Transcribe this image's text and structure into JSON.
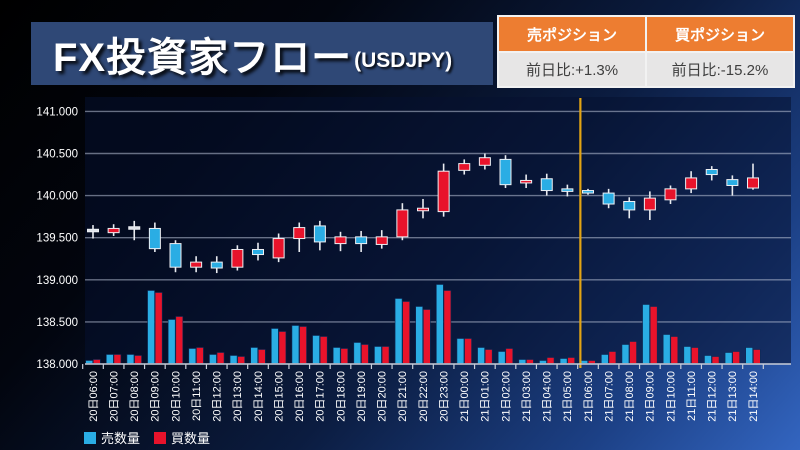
{
  "header": {
    "title": "FX投資家フロー",
    "subtitle": "(USDJPY)"
  },
  "positions": {
    "sell": {
      "label": "売ポジション",
      "value": "前日比:+1.3%"
    },
    "buy": {
      "label": "買ポジション",
      "value": "前日比:-15.2%"
    }
  },
  "legend": {
    "sell": "売数量",
    "buy": "買数量"
  },
  "colors": {
    "up_red": "#e8132b",
    "down_blue": "#2aade4",
    "flat_white": "#dfe3ea",
    "wick": "#e9ebf0",
    "grid": "rgba(185,195,215,0.55)",
    "axis": "#c7cdd9",
    "divider_yellow": "#e2a414",
    "header_orange": "#ed7d31",
    "cell_gray": "#e7e6e6",
    "title_navy": "#2f4876"
  },
  "chart_data": {
    "type": "candlestick+volume",
    "title": "FX投資家フロー (USDJPY)",
    "ylabel": "",
    "ylim": [
      138.0,
      141.0
    ],
    "ytick_labels": [
      "141.000",
      "140.500",
      "140.000",
      "139.500",
      "139.000",
      "138.500",
      "138.000"
    ],
    "yticks": [
      141.0,
      140.5,
      140.0,
      139.5,
      139.0,
      138.5,
      138.0
    ],
    "grid": true,
    "legend_position": "bottom-left",
    "divider_between": [
      "21日05:00",
      "21日06:00"
    ],
    "candles": [
      {
        "t": "20日06:00",
        "o": 139.6,
        "h": 139.65,
        "l": 139.49,
        "c": 139.58,
        "dir": "flat"
      },
      {
        "t": "20日07:00",
        "o": 139.56,
        "h": 139.66,
        "l": 139.52,
        "c": 139.61,
        "dir": "up"
      },
      {
        "t": "20日08:00",
        "o": 139.63,
        "h": 139.7,
        "l": 139.47,
        "c": 139.61,
        "dir": "flat"
      },
      {
        "t": "20日09:00",
        "o": 139.61,
        "h": 139.68,
        "l": 139.33,
        "c": 139.37,
        "dir": "down"
      },
      {
        "t": "20日10:00",
        "o": 139.43,
        "h": 139.47,
        "l": 139.09,
        "c": 139.15,
        "dir": "down"
      },
      {
        "t": "20日11:00",
        "o": 139.15,
        "h": 139.28,
        "l": 139.09,
        "c": 139.21,
        "dir": "up"
      },
      {
        "t": "20日12:00",
        "o": 139.21,
        "h": 139.28,
        "l": 139.08,
        "c": 139.14,
        "dir": "down"
      },
      {
        "t": "20日13:00",
        "o": 139.15,
        "h": 139.41,
        "l": 139.11,
        "c": 139.36,
        "dir": "up"
      },
      {
        "t": "20日14:00",
        "o": 139.36,
        "h": 139.44,
        "l": 139.23,
        "c": 139.3,
        "dir": "down"
      },
      {
        "t": "20日15:00",
        "o": 139.26,
        "h": 139.55,
        "l": 139.21,
        "c": 139.49,
        "dir": "up"
      },
      {
        "t": "20日16:00",
        "o": 139.49,
        "h": 139.68,
        "l": 139.33,
        "c": 139.62,
        "dir": "up"
      },
      {
        "t": "20日17:00",
        "o": 139.64,
        "h": 139.7,
        "l": 139.35,
        "c": 139.45,
        "dir": "down"
      },
      {
        "t": "20日18:00",
        "o": 139.43,
        "h": 139.57,
        "l": 139.34,
        "c": 139.51,
        "dir": "up"
      },
      {
        "t": "20日19:00",
        "o": 139.51,
        "h": 139.58,
        "l": 139.33,
        "c": 139.43,
        "dir": "down"
      },
      {
        "t": "20日20:00",
        "o": 139.42,
        "h": 139.59,
        "l": 139.37,
        "c": 139.51,
        "dir": "up"
      },
      {
        "t": "20日21:00",
        "o": 139.51,
        "h": 139.91,
        "l": 139.47,
        "c": 139.83,
        "dir": "up"
      },
      {
        "t": "20日22:00",
        "o": 139.82,
        "h": 139.96,
        "l": 139.73,
        "c": 139.85,
        "dir": "up"
      },
      {
        "t": "20日23:00",
        "o": 139.81,
        "h": 140.38,
        "l": 139.75,
        "c": 140.29,
        "dir": "up"
      },
      {
        "t": "21日00:00",
        "o": 140.3,
        "h": 140.43,
        "l": 140.25,
        "c": 140.38,
        "dir": "up"
      },
      {
        "t": "21日01:00",
        "o": 140.36,
        "h": 140.5,
        "l": 140.31,
        "c": 140.45,
        "dir": "up"
      },
      {
        "t": "21日02:00",
        "o": 140.43,
        "h": 140.48,
        "l": 140.09,
        "c": 140.13,
        "dir": "down"
      },
      {
        "t": "21日03:00",
        "o": 140.16,
        "h": 140.25,
        "l": 140.09,
        "c": 140.18,
        "dir": "up"
      },
      {
        "t": "21日04:00",
        "o": 140.2,
        "h": 140.26,
        "l": 140.0,
        "c": 140.06,
        "dir": "down"
      },
      {
        "t": "21日05:00",
        "o": 140.08,
        "h": 140.13,
        "l": 139.99,
        "c": 140.05,
        "dir": "down"
      },
      {
        "t": "21日06:00",
        "o": 140.06,
        "h": 140.08,
        "l": 140.01,
        "c": 140.04,
        "dir": "down"
      },
      {
        "t": "21日07:00",
        "o": 140.03,
        "h": 140.08,
        "l": 139.85,
        "c": 139.9,
        "dir": "down"
      },
      {
        "t": "21日08:00",
        "o": 139.93,
        "h": 139.98,
        "l": 139.73,
        "c": 139.83,
        "dir": "down"
      },
      {
        "t": "21日09:00",
        "o": 139.83,
        "h": 140.05,
        "l": 139.71,
        "c": 139.97,
        "dir": "up"
      },
      {
        "t": "21日10:00",
        "o": 139.95,
        "h": 140.12,
        "l": 139.9,
        "c": 140.08,
        "dir": "up"
      },
      {
        "t": "21日11:00",
        "o": 140.08,
        "h": 140.29,
        "l": 140.03,
        "c": 140.21,
        "dir": "up"
      },
      {
        "t": "21日12:00",
        "o": 140.31,
        "h": 140.35,
        "l": 140.18,
        "c": 140.25,
        "dir": "down"
      },
      {
        "t": "21日13:00",
        "o": 140.19,
        "h": 140.24,
        "l": 140.0,
        "c": 140.12,
        "dir": "down"
      },
      {
        "t": "21日14:00",
        "o": 140.09,
        "h": 140.38,
        "l": 140.07,
        "c": 140.21,
        "dir": "up"
      }
    ],
    "volume_series": [
      {
        "name": "売数量",
        "color": "#2aade4",
        "values": [
          3,
          9,
          9,
          73,
          44,
          15,
          9,
          8,
          16,
          35,
          38,
          28,
          16,
          21,
          17,
          65,
          57,
          79,
          25,
          16,
          12,
          4,
          3,
          5,
          3,
          9,
          19,
          59,
          29,
          17,
          8,
          11,
          16
        ]
      },
      {
        "name": "買数量",
        "color": "#e8132b",
        "values": [
          4,
          9,
          8,
          71,
          47,
          16,
          11,
          7,
          14,
          32,
          37,
          27,
          15,
          19,
          17,
          62,
          54,
          73,
          25,
          14,
          15,
          4,
          6,
          6,
          3,
          12,
          22,
          57,
          27,
          16,
          7,
          12,
          14
        ]
      }
    ]
  }
}
